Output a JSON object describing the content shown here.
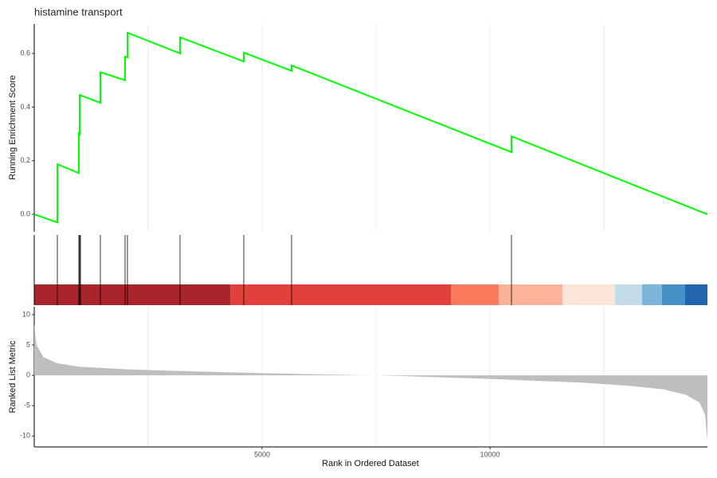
{
  "chart_data": [
    {
      "type": "line",
      "title": "histamine transport",
      "y_label": "Running Enrichment Score",
      "x": [
        0,
        507,
        507,
        979,
        979,
        997,
        997,
        1451,
        1451,
        1993,
        1993,
        2045,
        2045,
        3199,
        3199,
        4598,
        4598,
        5647,
        5647,
        10472,
        10472,
        14773
      ],
      "values": [
        0,
        -0.03,
        0.187,
        0.154,
        0.303,
        0.3,
        0.445,
        0.416,
        0.53,
        0.5,
        0.588,
        0.585,
        0.677,
        0.6,
        0.66,
        0.57,
        0.603,
        0.535,
        0.555,
        0.232,
        0.291,
        0
      ],
      "color": "#00ff00",
      "xlim": [
        0,
        14773
      ],
      "ylim": [
        -0.065,
        0.71
      ],
      "yticks": [
        {
          "value": 0,
          "label": "0.0"
        },
        0.2,
        0.4,
        0.6
      ],
      "xgrid": [
        2500,
        5000,
        7500,
        10000,
        12500
      ]
    },
    {
      "type": "rug",
      "hits": [
        507,
        979,
        997,
        1014,
        1451,
        1993,
        2045,
        3199,
        4598,
        5647,
        10472
      ],
      "color": "#000000",
      "xlim": [
        0,
        14773
      ],
      "band_breaks": [
        0,
        4301,
        9143,
        10192,
        11591,
        12745,
        13339,
        13776,
        14283,
        14773
      ],
      "band_colors": [
        "#a8252c",
        "#e2403d",
        "#fb7a5d",
        "#fcb39a",
        "#fde4d8",
        "#c4dbe9",
        "#7db5da",
        "#4690c7",
        "#2166ac"
      ]
    },
    {
      "type": "area",
      "y_label": "Ranked List Metric",
      "x_label": "Rank in Ordered Dataset",
      "x": [
        0,
        50,
        200,
        500,
        1000,
        2000,
        3000,
        4000,
        5000,
        6000,
        7000,
        7500,
        8000,
        9000,
        10000,
        11000,
        12000,
        13000,
        13800,
        14300,
        14600,
        14720,
        14773
      ],
      "values": [
        8.5,
        5,
        3,
        2,
        1.4,
        1,
        0.75,
        0.55,
        0.35,
        0.2,
        0.05,
        0,
        -0.1,
        -0.35,
        -0.6,
        -0.9,
        -1.2,
        -1.7,
        -2.3,
        -3.2,
        -4.5,
        -6.5,
        -10.8
      ],
      "color": "#bebebe",
      "xlim": [
        0,
        14773
      ],
      "ylim": [
        -11.8,
        11.3
      ],
      "yticks": [
        -10,
        -5,
        0,
        5,
        10
      ],
      "xticks": [
        5000,
        10000
      ],
      "xgrid": [
        2500,
        5000,
        7500,
        10000,
        12500
      ]
    }
  ]
}
